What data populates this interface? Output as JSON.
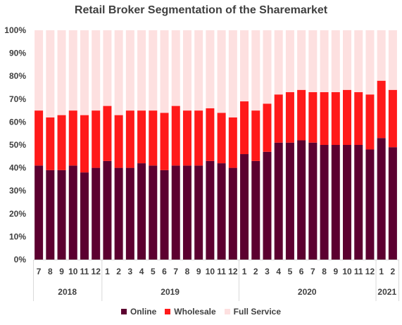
{
  "chart_data": {
    "type": "bar",
    "stacked": true,
    "title": "Retail Broker Segmentation of the Sharemarket",
    "categories": [
      "7",
      "8",
      "9",
      "10",
      "11",
      "12",
      "1",
      "2",
      "3",
      "4",
      "5",
      "6",
      "7",
      "8",
      "9",
      "10",
      "11",
      "12",
      "1",
      "2",
      "3",
      "4",
      "5",
      "6",
      "7",
      "8",
      "9",
      "10",
      "11",
      "12",
      "1",
      "2"
    ],
    "year_groups": [
      {
        "label": "2018",
        "count": 6
      },
      {
        "label": "2019",
        "count": 12
      },
      {
        "label": "2020",
        "count": 12
      },
      {
        "label": "2021",
        "count": 2
      }
    ],
    "series": [
      {
        "name": "Online",
        "color": "#5c0030",
        "values": [
          41,
          39,
          39,
          41,
          38,
          40,
          43,
          40,
          40,
          42,
          41,
          39,
          41,
          41,
          41,
          43,
          42,
          40,
          46,
          43,
          47,
          51,
          51,
          52,
          51,
          50,
          50,
          50,
          50,
          48,
          53,
          49
        ]
      },
      {
        "name": "Wholesale",
        "color": "#ff1a1a",
        "values": [
          24,
          23,
          24,
          24,
          25,
          25,
          24,
          23,
          25,
          23,
          24,
          25,
          26,
          24,
          24,
          23,
          22,
          22,
          23,
          22,
          21,
          21,
          22,
          22,
          22,
          23,
          23,
          24,
          23,
          24,
          25,
          25
        ]
      },
      {
        "name": "Full Service",
        "color": "#fde0e0",
        "values": [
          35,
          38,
          37,
          35,
          37,
          35,
          33,
          37,
          35,
          35,
          35,
          36,
          33,
          35,
          35,
          34,
          36,
          38,
          31,
          35,
          32,
          28,
          27,
          26,
          27,
          27,
          27,
          26,
          27,
          28,
          22,
          26
        ]
      }
    ],
    "ylim": [
      0,
      100
    ],
    "yticks": [
      "0%",
      "10%",
      "20%",
      "30%",
      "40%",
      "50%",
      "60%",
      "70%",
      "80%",
      "90%",
      "100%"
    ],
    "legend_position": "bottom",
    "grid": false
  }
}
